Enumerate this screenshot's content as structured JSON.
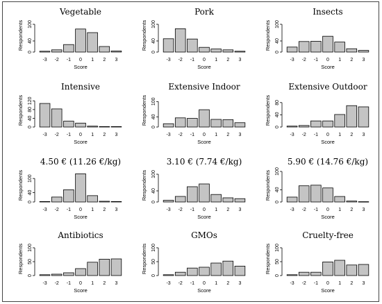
{
  "chart_data": [
    {
      "type": "bar",
      "title": "Vegetable",
      "xlabel": "Score",
      "ylabel": "Respondents",
      "categories": [
        "-3",
        "-2",
        "-1",
        "0",
        "1",
        "2",
        "3"
      ],
      "values": [
        3,
        8,
        27,
        83,
        70,
        20,
        4
      ],
      "yticks": [
        0,
        40,
        100
      ],
      "ylim": [
        0,
        110
      ]
    },
    {
      "type": "bar",
      "title": "Pork",
      "xlabel": "Score",
      "ylabel": "Respondents",
      "categories": [
        "-3",
        "-2",
        "-1",
        "0",
        "1",
        "2",
        "3"
      ],
      "values": [
        48,
        84,
        47,
        17,
        11,
        8,
        3
      ],
      "yticks": [
        0,
        40,
        100
      ],
      "ylim": [
        0,
        110
      ]
    },
    {
      "type": "bar",
      "title": "Insects",
      "xlabel": "Score",
      "ylabel": "Respondents",
      "categories": [
        "-3",
        "-2",
        "-1",
        "0",
        "1",
        "2",
        "3"
      ],
      "values": [
        18,
        38,
        39,
        57,
        36,
        12,
        6
      ],
      "yticks": [
        0,
        40,
        100
      ],
      "ylim": [
        0,
        110
      ]
    },
    {
      "type": "bar",
      "title": "Intensive",
      "xlabel": "Score",
      "ylabel": "Respondents",
      "categories": [
        "-3",
        "-2",
        "-1",
        "0",
        "1",
        "2",
        "3"
      ],
      "values": [
        108,
        83,
        27,
        18,
        4,
        2,
        2
      ],
      "yticks": [
        0,
        40,
        80,
        120
      ],
      "ylim": [
        0,
        140
      ]
    },
    {
      "type": "bar",
      "title": "Extensive Indoor",
      "xlabel": "Score",
      "ylabel": "Respondents",
      "categories": [
        "-3",
        "-2",
        "-1",
        "0",
        "1",
        "2",
        "3"
      ],
      "values": [
        13,
        36,
        34,
        68,
        30,
        29,
        17
      ],
      "yticks": [
        0,
        40,
        100
      ],
      "ylim": [
        0,
        120
      ]
    },
    {
      "type": "bar",
      "title": "Extensive Outdoor",
      "xlabel": "Score",
      "ylabel": "Respondents",
      "categories": [
        "-3",
        "-2",
        "-1",
        "0",
        "1",
        "2",
        "3"
      ],
      "values": [
        3,
        5,
        20,
        20,
        41,
        70,
        66
      ],
      "yticks": [
        0,
        40,
        80
      ],
      "ylim": [
        0,
        100
      ]
    },
    {
      "type": "bar",
      "title": "4.50 € (11.26 €/kg)",
      "xlabel": "Score",
      "ylabel": "Respondents",
      "categories": [
        "-3",
        "-2",
        "-1",
        "0",
        "1",
        "2",
        "3"
      ],
      "values": [
        2,
        21,
        52,
        120,
        27,
        3,
        2
      ],
      "yticks": [
        0,
        40,
        100
      ],
      "ylim": [
        0,
        130
      ]
    },
    {
      "type": "bar",
      "title": "3.10 € (7.74 €/kg)",
      "xlabel": "Score",
      "ylabel": "Respondents",
      "categories": [
        "-3",
        "-2",
        "-1",
        "0",
        "1",
        "2",
        "3"
      ],
      "values": [
        6,
        20,
        55,
        65,
        27,
        15,
        12
      ],
      "yticks": [
        0,
        40,
        100
      ],
      "ylim": [
        0,
        110
      ]
    },
    {
      "type": "bar",
      "title": "5.90 € (14.76 €/kg)",
      "xlabel": "Score",
      "ylabel": "Respondents",
      "categories": [
        "-3",
        "-2",
        "-1",
        "0",
        "1",
        "2",
        "3"
      ],
      "values": [
        16,
        53,
        55,
        46,
        18,
        3,
        1
      ],
      "yticks": [
        0,
        40,
        100
      ],
      "ylim": [
        0,
        100
      ]
    },
    {
      "type": "bar",
      "title": "Antibiotics",
      "xlabel": "Score",
      "ylabel": "Respondents",
      "categories": [
        "-3",
        "-2",
        "-1",
        "0",
        "1",
        "2",
        "3"
      ],
      "values": [
        3,
        5,
        10,
        25,
        48,
        59,
        60
      ],
      "yticks": [
        0,
        50,
        100
      ],
      "ylim": [
        0,
        110
      ]
    },
    {
      "type": "bar",
      "title": "GMOs",
      "xlabel": "Score",
      "ylabel": "Respondents",
      "categories": [
        "-3",
        "-2",
        "-1",
        "0",
        "1",
        "2",
        "3"
      ],
      "values": [
        3,
        12,
        27,
        30,
        45,
        52,
        34
      ],
      "yticks": [
        0,
        50,
        100
      ],
      "ylim": [
        0,
        110
      ]
    },
    {
      "type": "bar",
      "title": "Cruelty-free",
      "xlabel": "Score",
      "ylabel": "Respondents",
      "categories": [
        "-3",
        "-2",
        "-1",
        "0",
        "1",
        "2",
        "3"
      ],
      "values": [
        3,
        12,
        12,
        49,
        55,
        38,
        40
      ],
      "yticks": [
        0,
        50,
        100
      ],
      "ylim": [
        0,
        110
      ]
    }
  ]
}
